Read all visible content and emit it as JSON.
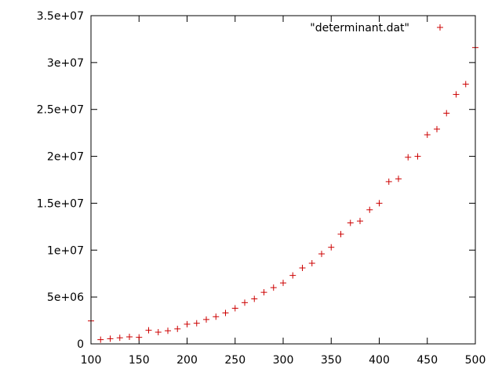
{
  "chart_data": {
    "type": "scatter",
    "title": "",
    "xlabel": "",
    "ylabel": "",
    "xlim": [
      100,
      500
    ],
    "ylim": [
      0,
      35000000
    ],
    "x_ticks": [
      100,
      150,
      200,
      250,
      300,
      350,
      400,
      450,
      500
    ],
    "x_tick_labels": [
      "100",
      "150",
      "200",
      "250",
      "300",
      "350",
      "400",
      "450",
      "500"
    ],
    "y_ticks": [
      0,
      5000000,
      10000000,
      15000000,
      20000000,
      25000000,
      30000000,
      35000000
    ],
    "y_tick_labels": [
      "0",
      "5e+06",
      "1e+07",
      "1.5e+07",
      "2e+07",
      "2.5e+07",
      "3e+07",
      "3.5e+07"
    ],
    "grid": false,
    "legend_position": "top-right",
    "marker": "plus",
    "color": "#cc0000",
    "series": [
      {
        "name": "\"determinant.dat\"",
        "x": [
          100,
          110,
          120,
          130,
          140,
          150,
          160,
          170,
          180,
          190,
          200,
          210,
          220,
          230,
          240,
          250,
          260,
          270,
          280,
          290,
          300,
          310,
          320,
          330,
          340,
          350,
          360,
          370,
          380,
          390,
          400,
          410,
          420,
          430,
          440,
          450,
          460,
          470,
          480,
          490,
          500
        ],
        "y": [
          2450000,
          450000,
          550000,
          650000,
          750000,
          700000,
          1450000,
          1250000,
          1400000,
          1600000,
          2100000,
          2200000,
          2600000,
          2900000,
          3300000,
          3800000,
          4400000,
          4800000,
          5500000,
          6000000,
          6500000,
          7300000,
          8100000,
          8600000,
          9600000,
          10300000,
          11700000,
          12900000,
          13100000,
          14300000,
          15000000,
          17300000,
          17600000,
          19900000,
          20000000,
          22300000,
          22900000,
          24600000,
          26600000,
          27700000,
          31600000
        ]
      }
    ]
  }
}
